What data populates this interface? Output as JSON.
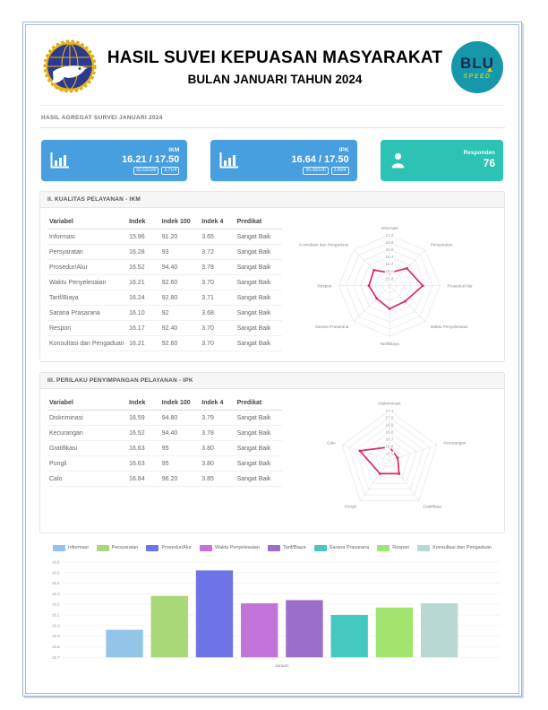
{
  "header": {
    "title": "HASIL SUVEI KEPUASAN MASYARAKAT",
    "subtitle": "BULAN JANUARI TAHUN 2024",
    "blu_logo": {
      "line1": "BLU",
      "line2": "SPEED"
    }
  },
  "aggregate_label": "HASIL AGREGAT SURVEI JANUARI 2024",
  "cards": [
    {
      "label": "IKM",
      "value": "16.21 / 17.50",
      "badges": [
        "92.63/100",
        "3.71/4"
      ],
      "color": "#479fe0",
      "icon": "bar-chart-icon"
    },
    {
      "label": "IPK",
      "value": "16.64 / 17.50",
      "badges": [
        "95.08/100",
        "3.80/4"
      ],
      "color": "#479fe0",
      "icon": "bar-chart-icon"
    },
    {
      "label": "Responden",
      "value": "76",
      "badges": [],
      "color": "#2cc3b4",
      "icon": "person-icon"
    }
  ],
  "section_ikm": {
    "title": "II. KUALITAS PELAYANAN - IKM",
    "headers": [
      "Variabel",
      "Indek",
      "Indek 100",
      "Indek 4",
      "Predikat"
    ],
    "rows": [
      [
        "Informasi",
        "15.96",
        "91.20",
        "3.65",
        "Sangat Baik"
      ],
      [
        "Persyaratan",
        "16.28",
        "93",
        "3.72",
        "Sangat Baik"
      ],
      [
        "Prosedur/Alur",
        "16.52",
        "94.40",
        "3.78",
        "Sangat Baik"
      ],
      [
        "Waktu Penyelesaian",
        "16.21",
        "92.60",
        "3.70",
        "Sangat Baik"
      ],
      [
        "Tarif/Biaya",
        "16.24",
        "92.80",
        "3.71",
        "Sangat Baik"
      ],
      [
        "Sarana Prasarana",
        "16.10",
        "92",
        "3.68",
        "Sangat Baik"
      ],
      [
        "Respon",
        "16.17",
        "92.40",
        "3.70",
        "Sangat Baik"
      ],
      [
        "Konsultasi dan Pengaduan",
        "16.21",
        "92.60",
        "3.70",
        "Sangat Baik"
      ]
    ]
  },
  "section_ipk": {
    "title": "III. PERILAKU PENYIMPANGAN PELAYANAN - IPK",
    "headers": [
      "Variabel",
      "Indek",
      "Indek 100",
      "Indek 4",
      "Predikat"
    ],
    "rows": [
      [
        "Diskriminasi",
        "16.59",
        "94.80",
        "3.79",
        "Sangat Baik"
      ],
      [
        "Kecurangan",
        "16.52",
        "94.40",
        "3.78",
        "Sangat Baik"
      ],
      [
        "Gratifikasi",
        "16.63",
        "95",
        "3.80",
        "Sangat Baik"
      ],
      [
        "Pungli",
        "16.63",
        "95",
        "3.80",
        "Sangat Baik"
      ],
      [
        "Calo",
        "16.84",
        "96.20",
        "3.85",
        "Sangat Baik"
      ]
    ]
  },
  "chart_data": [
    {
      "type": "radar",
      "id": "radar-ikm",
      "categories": [
        "Informasi",
        "Persyaratan",
        "Prosedur/Alur",
        "Waktu Penyelesaian",
        "Tarif/Biaya",
        "Sarana Prasarana",
        "Respon",
        "Konsultasi dan Pengaduan"
      ],
      "values": [
        15.96,
        16.28,
        16.52,
        16.21,
        16.24,
        16.1,
        16.17,
        16.21
      ],
      "ticks": [
        17.0,
        16.8,
        16.6,
        16.4,
        16.2,
        16.0,
        15.8
      ],
      "min": 15.6,
      "max": 17.0,
      "line_color": "#d62e5e",
      "grid": true,
      "legend": "none"
    },
    {
      "type": "radar",
      "id": "radar-ipk",
      "categories": [
        "Diskriminasi",
        "Kecurangan",
        "Gratifikasi",
        "Pungli",
        "Calo"
      ],
      "values": [
        16.59,
        16.52,
        16.63,
        16.63,
        16.84
      ],
      "ticks": [
        17.1,
        17.0,
        16.9,
        16.8,
        16.7,
        16.6,
        16.5
      ],
      "min": 16.4,
      "max": 17.1,
      "line_color": "#d62e5e",
      "grid": true,
      "legend": "none"
    },
    {
      "type": "bar",
      "id": "bar-januari",
      "categories": [
        "Januari"
      ],
      "xlabel": "Januari",
      "ylim": [
        15.7,
        16.6
      ],
      "ytick_step": 0.1,
      "grid": true,
      "legend": "top",
      "series": [
        {
          "name": "Informasi",
          "color": "#93c5e8",
          "values": [
            15.96
          ]
        },
        {
          "name": "Persyaratan",
          "color": "#a8d878",
          "values": [
            16.28
          ]
        },
        {
          "name": "Prosedur/Alur",
          "color": "#6e74e6",
          "values": [
            16.52
          ]
        },
        {
          "name": "Waktu Penyelesaian",
          "color": "#c273d9",
          "values": [
            16.21
          ]
        },
        {
          "name": "Tarif/Biaya",
          "color": "#9b6fc9",
          "values": [
            16.24
          ]
        },
        {
          "name": "Sarana Prasarana",
          "color": "#45c8c0",
          "values": [
            16.1
          ]
        },
        {
          "name": "Respon",
          "color": "#a2e56e",
          "values": [
            16.17
          ]
        },
        {
          "name": "Konsultasi dan Pengaduan",
          "color": "#b7d8d3",
          "values": [
            16.21
          ]
        }
      ]
    }
  ]
}
